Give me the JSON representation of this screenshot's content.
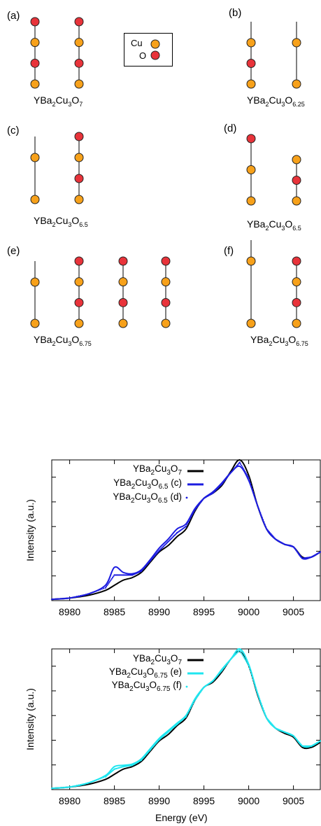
{
  "structures": {
    "legend": {
      "cu": "Cu",
      "o": "O"
    },
    "colors": {
      "cu": "#f7a11a",
      "o": "#e8333a"
    },
    "panels": [
      {
        "label": "(a)",
        "formula": {
          "base": "YBa",
          "s1": "2",
          "mid": "Cu",
          "s2": "3",
          "o": "O",
          "s3": "7"
        },
        "chains": [
          [
            "o",
            "cu",
            "o",
            "cu"
          ],
          [
            "o",
            "cu",
            "o",
            "cu"
          ]
        ]
      },
      {
        "label": "(b)",
        "formula": {
          "base": "YBa",
          "s1": "2",
          "mid": "Cu",
          "s2": "3",
          "o": "O",
          "s3": "6.25"
        },
        "chains": [
          [
            "cu",
            "o",
            "cu"
          ],
          [
            "cu",
            "cu"
          ]
        ]
      },
      {
        "label": "(c)",
        "formula": {
          "base": "YBa",
          "s1": "2",
          "mid": "Cu",
          "s2": "3",
          "o": "O",
          "s3": "6.5"
        },
        "chains": [
          [
            "cu",
            "cu"
          ],
          [
            "o",
            "cu",
            "o",
            "cu"
          ]
        ]
      },
      {
        "label": "(d)",
        "formula": {
          "base": "YBa",
          "s1": "2",
          "mid": "Cu",
          "s2": "3",
          "o": "O",
          "s3": "6.5"
        },
        "chains": [
          [
            "o",
            "cu",
            "cu"
          ],
          [
            "cu",
            "o",
            "cu"
          ]
        ]
      },
      {
        "label": "(e)",
        "formula": {
          "base": "YBa",
          "s1": "2",
          "mid": "Cu",
          "s2": "3",
          "o": "O",
          "s3": "6.75"
        },
        "chains": [
          [
            "cu",
            "cu"
          ],
          [
            "o",
            "cu",
            "o",
            "cu"
          ],
          [
            "o",
            "cu",
            "o",
            "cu"
          ],
          [
            "o",
            "cu",
            "o",
            "cu"
          ]
        ]
      },
      {
        "label": "(f)",
        "formula": {
          "base": "YBa",
          "s1": "2",
          "mid": "Cu",
          "s2": "3",
          "o": "O",
          "s3": "6.75"
        },
        "chains": [
          [
            "cu",
            "cu"
          ],
          [
            "o",
            "cu",
            "o",
            "cu"
          ]
        ]
      }
    ]
  },
  "chart_data": [
    {
      "type": "line",
      "xlabel": "",
      "ylabel": "Intensity (a.u.)",
      "xlim": [
        8978,
        9008
      ],
      "ylim": [
        0,
        1.1
      ],
      "xticks": [
        8980,
        8985,
        8990,
        8995,
        9000,
        9005
      ],
      "xtick_labels": [
        "8980",
        "8985",
        "8990",
        "8995",
        "9000",
        "9005"
      ],
      "grid": false,
      "legend_position": "top-right",
      "series": [
        {
          "name": "YBa2Cu3O7",
          "label": {
            "pre": "YBa",
            "s1": "2",
            "mid": "Cu",
            "s2": "3",
            "o": "O",
            "s3": "7",
            "suffix": ""
          },
          "style": "line",
          "color": "#000000",
          "x": [
            8978,
            8980,
            8982,
            8984,
            8985,
            8986,
            8987,
            8988,
            8989,
            8990,
            8991,
            8992,
            8993,
            8994,
            8995,
            8996,
            8997,
            8998,
            8999,
            9000,
            9001,
            9002,
            9003,
            9004,
            9005,
            9006,
            9007,
            9008
          ],
          "y": [
            0.01,
            0.02,
            0.04,
            0.08,
            0.12,
            0.16,
            0.18,
            0.22,
            0.3,
            0.38,
            0.43,
            0.5,
            0.56,
            0.7,
            0.8,
            0.84,
            0.9,
            1.01,
            1.1,
            0.98,
            0.74,
            0.56,
            0.48,
            0.44,
            0.42,
            0.34,
            0.34,
            0.38
          ]
        },
        {
          "name": "YBa2Cu3O6.5 (c)",
          "label": {
            "pre": "YBa",
            "s1": "2",
            "mid": "Cu",
            "s2": "3",
            "o": "O",
            "s3": "6.5",
            "suffix": " (c)"
          },
          "style": "line",
          "color": "#1c1ce0",
          "x": [
            8978,
            8980,
            8982,
            8984,
            8985,
            8986,
            8987,
            8988,
            8989,
            8990,
            8991,
            8992,
            8993,
            8994,
            8995,
            8996,
            8997,
            8998,
            8999,
            9000,
            9001,
            9002,
            9003,
            9004,
            9005,
            9006,
            9007,
            9008
          ],
          "y": [
            0.01,
            0.02,
            0.05,
            0.12,
            0.26,
            0.22,
            0.21,
            0.24,
            0.32,
            0.41,
            0.48,
            0.56,
            0.6,
            0.72,
            0.8,
            0.85,
            0.92,
            1.0,
            1.05,
            0.94,
            0.74,
            0.56,
            0.48,
            0.44,
            0.42,
            0.33,
            0.34,
            0.38
          ]
        },
        {
          "name": "YBa2Cu3O6.5 (d)",
          "label": {
            "pre": "YBa",
            "s1": "2",
            "mid": "Cu",
            "s2": "3",
            "o": "O",
            "s3": "6.5",
            "suffix": " (d)"
          },
          "style": "points",
          "color": "#1c1ce0",
          "x": [
            8978,
            8980,
            8982,
            8984,
            8985,
            8986,
            8987,
            8988,
            8989,
            8990,
            8991,
            8992,
            8993,
            8994,
            8995,
            8996,
            8997,
            8998,
            8999,
            9000,
            9001,
            9002,
            9003,
            9004,
            9005,
            9006,
            9007,
            9008
          ],
          "y": [
            0.01,
            0.02,
            0.05,
            0.1,
            0.2,
            0.2,
            0.2,
            0.23,
            0.31,
            0.39,
            0.46,
            0.53,
            0.58,
            0.71,
            0.8,
            0.84,
            0.91,
            1.0,
            1.08,
            0.96,
            0.74,
            0.56,
            0.48,
            0.44,
            0.42,
            0.33,
            0.34,
            0.38
          ]
        }
      ]
    },
    {
      "type": "line",
      "xlabel": "Energy (eV)",
      "ylabel": "Intensity (a.u.)",
      "xlim": [
        8978,
        9008
      ],
      "ylim": [
        0,
        1.1
      ],
      "xticks": [
        8980,
        8985,
        8990,
        8995,
        9000,
        9005
      ],
      "xtick_labels": [
        "8980",
        "8985",
        "8990",
        "8995",
        "9000",
        "9005"
      ],
      "grid": false,
      "legend_position": "top-right",
      "series": [
        {
          "name": "YBa2Cu3O7",
          "label": {
            "pre": "YBa",
            "s1": "2",
            "mid": "Cu",
            "s2": "3",
            "o": "O",
            "s3": "7",
            "suffix": ""
          },
          "style": "line",
          "color": "#000000",
          "x": [
            8978,
            8980,
            8982,
            8984,
            8985,
            8986,
            8987,
            8988,
            8989,
            8990,
            8991,
            8992,
            8993,
            8994,
            8995,
            8996,
            8997,
            8998,
            8999,
            9000,
            9001,
            9002,
            9003,
            9004,
            9005,
            9006,
            9007,
            9008
          ],
          "y": [
            0.01,
            0.02,
            0.04,
            0.08,
            0.12,
            0.16,
            0.18,
            0.22,
            0.3,
            0.38,
            0.43,
            0.5,
            0.56,
            0.7,
            0.8,
            0.84,
            0.92,
            1.02,
            1.08,
            0.97,
            0.74,
            0.56,
            0.48,
            0.44,
            0.41,
            0.33,
            0.33,
            0.37
          ]
        },
        {
          "name": "YBa2Cu3O6.75 (e)",
          "label": {
            "pre": "YBa",
            "s1": "2",
            "mid": "Cu",
            "s2": "3",
            "o": "O",
            "s3": "6.75",
            "suffix": " (e)"
          },
          "style": "line",
          "color": "#1fe6f0",
          "x": [
            8978,
            8980,
            8982,
            8984,
            8985,
            8986,
            8987,
            8988,
            8989,
            8990,
            8991,
            8992,
            8993,
            8994,
            8995,
            8996,
            8997,
            8998,
            8999,
            9000,
            9001,
            9002,
            9003,
            9004,
            9005,
            9006,
            9007,
            9008
          ],
          "y": [
            0.01,
            0.02,
            0.05,
            0.11,
            0.18,
            0.19,
            0.2,
            0.24,
            0.32,
            0.4,
            0.46,
            0.52,
            0.58,
            0.71,
            0.8,
            0.85,
            0.94,
            1.02,
            1.1,
            0.98,
            0.75,
            0.56,
            0.48,
            0.45,
            0.42,
            0.34,
            0.34,
            0.38
          ]
        },
        {
          "name": "YBa2Cu3O6.75 (f)",
          "label": {
            "pre": "YBa",
            "s1": "2",
            "mid": "Cu",
            "s2": "3",
            "o": "O",
            "s3": "6.75",
            "suffix": " (f)"
          },
          "style": "points",
          "color": "#1fe6f0",
          "x": [
            8978,
            8980,
            8982,
            8984,
            8985,
            8986,
            8987,
            8988,
            8989,
            8990,
            8991,
            8992,
            8993,
            8994,
            8995,
            8996,
            8997,
            8998,
            8999,
            9000,
            9001,
            9002,
            9003,
            9004,
            9005,
            9006,
            9007,
            9008
          ],
          "y": [
            0.01,
            0.02,
            0.05,
            0.1,
            0.16,
            0.18,
            0.19,
            0.23,
            0.31,
            0.39,
            0.45,
            0.51,
            0.57,
            0.7,
            0.8,
            0.85,
            0.93,
            1.02,
            1.09,
            0.97,
            0.75,
            0.56,
            0.48,
            0.45,
            0.42,
            0.34,
            0.34,
            0.38
          ]
        }
      ]
    }
  ]
}
